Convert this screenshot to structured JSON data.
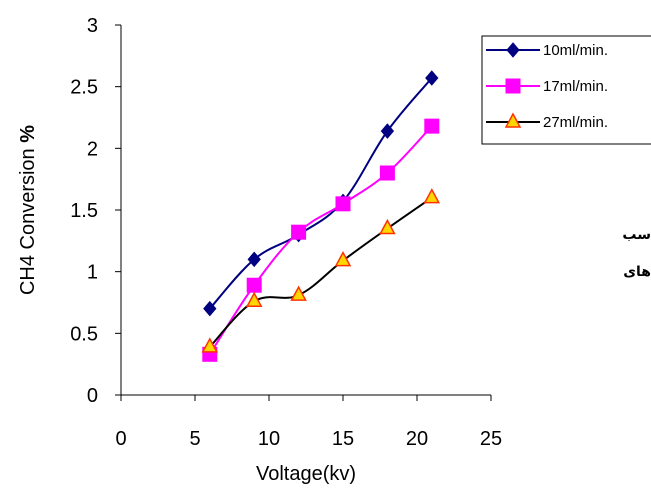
{
  "chart_data": {
    "type": "line",
    "title": "",
    "xlabel": "Voltage(kv)",
    "ylabel_main": "CH4 Conversion ",
    "ylabel_symbol": "%",
    "xlim": [
      0,
      25
    ],
    "ylim": [
      0,
      3
    ],
    "xticks": [
      "0",
      "5",
      "10",
      "15",
      "20",
      "25"
    ],
    "yticks": [
      "0",
      "0.5",
      "1",
      "1.5",
      "2",
      "2.5",
      "3"
    ],
    "grid": false,
    "legend_position": "top-right",
    "x": [
      6,
      9,
      12,
      15,
      18,
      21
    ],
    "series": [
      {
        "name": "10ml/min.",
        "values": [
          0.7,
          1.1,
          1.3,
          1.57,
          2.14,
          2.57
        ],
        "line_color": "#000080",
        "marker": "diamond",
        "marker_color": "#000080"
      },
      {
        "name": "17ml/min.",
        "values": [
          0.33,
          0.89,
          1.32,
          1.55,
          1.8,
          2.18
        ],
        "line_color": "#FF00FF",
        "marker": "square",
        "marker_color": "#FF00FF"
      },
      {
        "name": "27ml/min.",
        "values": [
          0.39,
          0.76,
          0.81,
          1.09,
          1.35,
          1.6
        ],
        "line_color": "#000000",
        "marker": "triangle",
        "marker_color": "#FFD700",
        "marker_edge": "#FF3300"
      }
    ]
  },
  "side_text": {
    "line1": "سب",
    "line2": "های"
  }
}
